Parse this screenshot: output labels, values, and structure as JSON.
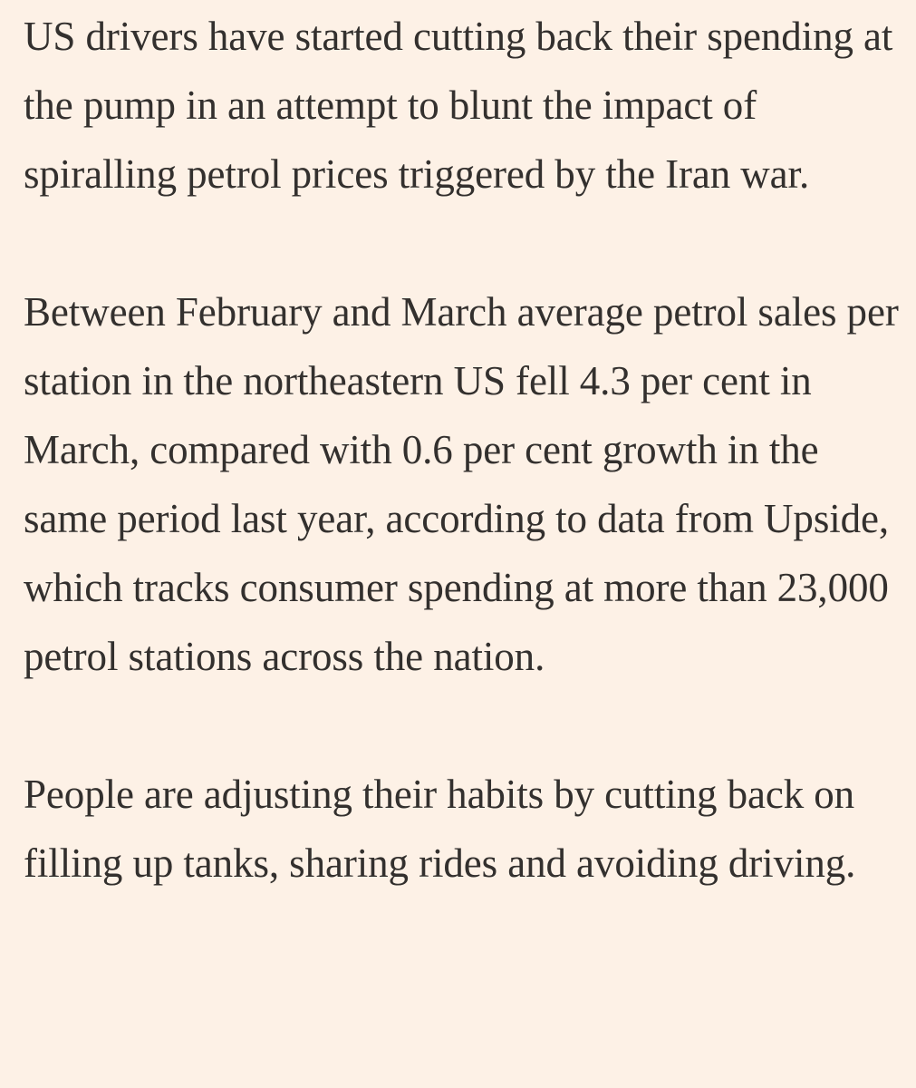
{
  "article": {
    "paragraphs": [
      "US drivers have started cutting back their spending at the pump in an attempt to blunt the impact of spiralling petrol prices triggered by the Iran war.",
      "Between February and March average petrol sales per station in the northeastern US fell 4.3 per cent in March, compared with 0.6 per cent growth in the same period last year, according to data from Upside, which tracks consumer spending at more than 23,000 petrol stations across the nation.",
      "People are adjusting their habits by cutting back on filling up tanks, sharing rides and avoiding driving."
    ]
  },
  "colors": {
    "background": "#fdf1e6",
    "text": "#33302e"
  }
}
